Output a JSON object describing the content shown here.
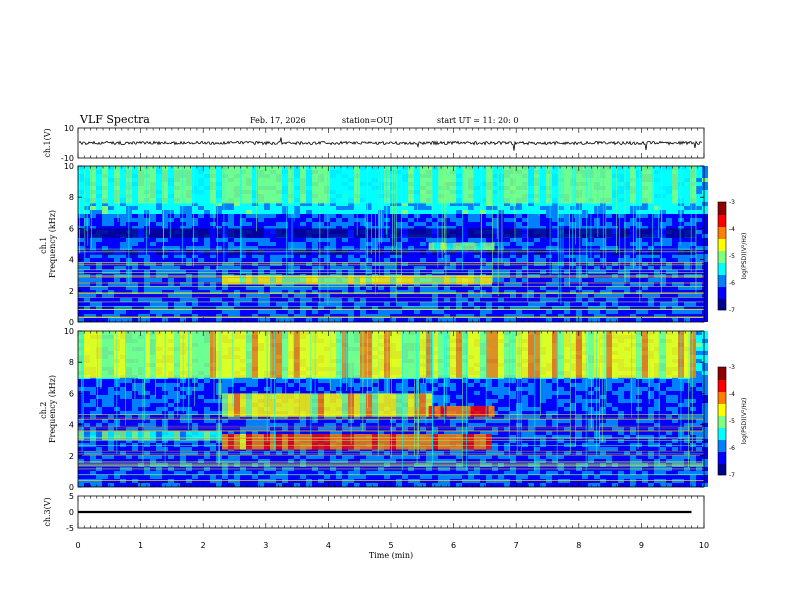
{
  "header": {
    "title": "VLF Spectra",
    "date": "Feb. 17, 2026",
    "station": "station=OUJ",
    "start": "start  UT =   11: 20: 0"
  },
  "colors": {
    "colormap": [
      "#00008f",
      "#0000ff",
      "#007fff",
      "#00ffff",
      "#7fff7f",
      "#ffff00",
      "#ff7f00",
      "#ff0000",
      "#8f0000"
    ]
  },
  "chart_data": [
    {
      "type": "line",
      "title": "",
      "ylabel": "ch.1(V)",
      "ylim": [
        -10,
        10
      ],
      "ytick_labels": [
        "10",
        "-10"
      ],
      "series": [
        {
          "name": "ch.1 waveform",
          "approx_level": 0
        }
      ]
    },
    {
      "type": "heatmap",
      "ylabel": "ch.1\nFrequency (kHz)",
      "ylabel_lines": [
        "ch.1",
        "Frequency (kHz)"
      ],
      "ylim": [
        0,
        10
      ],
      "ytick_labels": [
        "0",
        "2",
        "4",
        "6",
        "8",
        "10"
      ],
      "colorbar": {
        "label": "log(PSD)(V²/Hz)",
        "range": [
          -7,
          -3
        ],
        "tick_labels": [
          "-3",
          "-4",
          "-5",
          "-6",
          "-7"
        ]
      },
      "bands": [
        {
          "t0": 0.0,
          "t1": 9.8,
          "f0": 5.4,
          "f1": 6.0,
          "level": 0.05
        },
        {
          "t0": 0.0,
          "t1": 9.8,
          "f0": 4.3,
          "f1": 4.6,
          "level": 0.1
        },
        {
          "t0": 2.3,
          "t1": 6.6,
          "f0": 2.4,
          "f1": 3.0,
          "level": 0.55
        },
        {
          "t0": 5.6,
          "t1": 6.6,
          "f0": 4.6,
          "f1": 5.1,
          "level": 0.5
        },
        {
          "t0": 0.0,
          "t1": 9.8,
          "f0": 7.6,
          "f1": 10.0,
          "level": 0.45
        }
      ]
    },
    {
      "type": "heatmap",
      "ylabel": "ch.2\nFrequency (kHz)",
      "ylabel_lines": [
        "ch.2",
        "Frequency (kHz)"
      ],
      "ylim": [
        0,
        10
      ],
      "ytick_labels": [
        "0",
        "2",
        "4",
        "6",
        "8",
        "10"
      ],
      "colorbar": {
        "label": "log(PSD)(V²/Hz)",
        "range": [
          -7,
          -3
        ],
        "tick_labels": [
          "-3",
          "-4",
          "-5",
          "-6",
          "-7"
        ]
      },
      "bands": [
        {
          "t0": 2.3,
          "t1": 6.6,
          "f0": 2.4,
          "f1": 3.4,
          "level": 0.75
        },
        {
          "t0": 2.3,
          "t1": 5.6,
          "f0": 4.5,
          "f1": 6.0,
          "level": 0.6
        },
        {
          "t0": 5.6,
          "t1": 6.6,
          "f0": 4.5,
          "f1": 5.2,
          "level": 0.8
        },
        {
          "t0": 0.0,
          "t1": 9.8,
          "f0": 7.0,
          "f1": 10.0,
          "level": 0.6
        },
        {
          "t0": 0.0,
          "t1": 2.3,
          "f0": 3.0,
          "f1": 3.6,
          "level": 0.4
        }
      ]
    },
    {
      "type": "line",
      "ylabel": "ch.3(V)",
      "ylim": [
        -5,
        5
      ],
      "ytick_labels": [
        "5",
        "0",
        "-5"
      ],
      "xlabel": "Time  (min)",
      "xlim": [
        0,
        10
      ],
      "xtick_labels": [
        "0",
        "1",
        "2",
        "3",
        "4",
        "5",
        "6",
        "7",
        "8",
        "9",
        "10"
      ],
      "series": [
        {
          "name": "ch.3 level",
          "x": [
            0.0,
            9.8
          ],
          "y": [
            0.0,
            0.0
          ]
        }
      ]
    }
  ]
}
